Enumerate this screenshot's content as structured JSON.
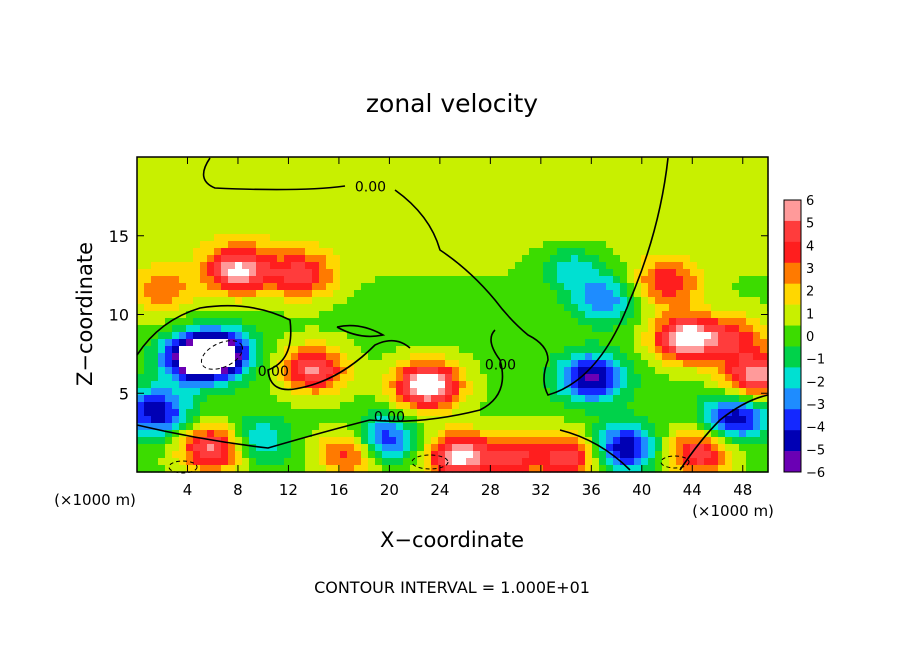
{
  "chart_data": {
    "type": "heatmap",
    "title": "zonal velocity",
    "xlabel": "X−coordinate",
    "ylabel": "Z−coordinate",
    "x_units_left": "(×1000 m)",
    "x_units_right": "(×1000 m)",
    "xlim": [
      0,
      50
    ],
    "ylim": [
      0,
      20
    ],
    "x_ticks": [
      4,
      8,
      12,
      16,
      20,
      24,
      28,
      32,
      36,
      40,
      44,
      48
    ],
    "y_ticks": [
      5,
      10,
      15
    ],
    "footer": "CONTOUR INTERVAL = 1.000E+01",
    "colorbar": {
      "levels": [
        6,
        5,
        4,
        3,
        2,
        1,
        0,
        -1,
        -2,
        -3,
        -4,
        -5,
        -6
      ],
      "labels": [
        "6",
        "5",
        "4",
        "3",
        "2",
        "1",
        "0",
        "−1",
        "−2",
        "−3",
        "−4",
        "−5",
        "−6"
      ],
      "colors": [
        "#ff9a9a",
        "#ff3c3c",
        "#ff1e1e",
        "#ff7a00",
        "#ffd700",
        "#c8f000",
        "#3cdc00",
        "#00d24a",
        "#00e0d2",
        "#1e8cff",
        "#1428ff",
        "#0000b4",
        "#6a00b4"
      ]
    },
    "contour_labels": [
      {
        "text": "0.00",
        "x": 18.5,
        "z": 17.8
      },
      {
        "text": "0.00",
        "x": 10.8,
        "z": 6.1
      },
      {
        "text": "0.00",
        "x": 28.8,
        "z": 6.5
      },
      {
        "text": "0.00",
        "x": 20.0,
        "z": 3.2
      }
    ],
    "blobs": [
      {
        "x": 4.5,
        "z": 7.2,
        "v": -6.5
      },
      {
        "x": 6.5,
        "z": 7.5,
        "v": -7.0
      },
      {
        "x": 1.5,
        "z": 3.8,
        "v": -5.5
      },
      {
        "x": 8.0,
        "z": 12.8,
        "v": 6.0
      },
      {
        "x": 13.0,
        "z": 12.5,
        "v": 4.5
      },
      {
        "x": 2.0,
        "z": 11.5,
        "v": 3.0
      },
      {
        "x": 14.0,
        "z": 6.5,
        "v": 5.5
      },
      {
        "x": 23.0,
        "z": 5.5,
        "v": 7.5
      },
      {
        "x": 36.0,
        "z": 6.0,
        "v": -6.0
      },
      {
        "x": 34.5,
        "z": 13.0,
        "v": -2.5
      },
      {
        "x": 37.0,
        "z": 11.0,
        "v": -3.5
      },
      {
        "x": 43.5,
        "z": 8.5,
        "v": 7.0
      },
      {
        "x": 42.0,
        "z": 12.0,
        "v": 4.0
      },
      {
        "x": 47.5,
        "z": 8.5,
        "v": 3.5
      },
      {
        "x": 6.0,
        "z": 1.5,
        "v": 6.0
      },
      {
        "x": 9.5,
        "z": 2.0,
        "v": -3.0
      },
      {
        "x": 17.0,
        "z": 1.2,
        "v": 4.5
      },
      {
        "x": 19.5,
        "z": 2.0,
        "v": -5.0
      },
      {
        "x": 25.5,
        "z": 1.0,
        "v": 6.5
      },
      {
        "x": 30.0,
        "z": 1.0,
        "v": 4.0
      },
      {
        "x": 34.5,
        "z": 1.0,
        "v": 5.0
      },
      {
        "x": 38.5,
        "z": 1.5,
        "v": -6.0
      },
      {
        "x": 44.5,
        "z": 1.2,
        "v": 5.0
      },
      {
        "x": 47.5,
        "z": 3.5,
        "v": -5.5
      },
      {
        "x": 49.0,
        "z": 6.0,
        "v": 6.0
      }
    ]
  }
}
